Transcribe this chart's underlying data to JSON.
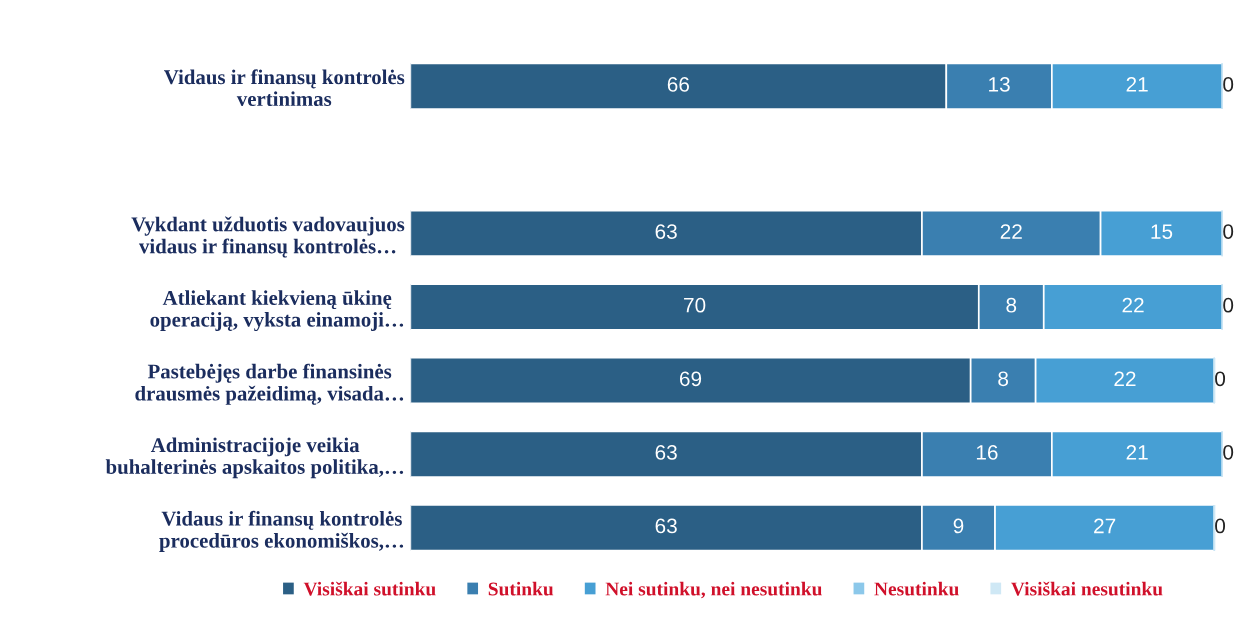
{
  "chart_data": {
    "type": "bar",
    "orientation": "horizontal",
    "stacked": true,
    "categories": [
      "Vidaus ir finansų kontrolės\nvertinimas",
      null,
      "Vykdant užduotis vadovaujuos\nvidaus ir finansų kontrolės…",
      "Atliekant kiekvieną ūkinę\noperaciją, vyksta einamoji…",
      "Pastebėjęs darbe finansinės\ndrausmės pažeidimą, visada…",
      "Administracijoje veikia\nbuhalterinės apskaitos politika,…",
      "Vidaus ir finansų kontrolės\nprocedūros ekonomiškos,…"
    ],
    "xlim": [
      0,
      100
    ],
    "tick_labels": "y",
    "legend": "bottom",
    "series": [
      {
        "name": "Visiškai sutinku",
        "color": "#2b5f85",
        "values": [
          66,
          null,
          63,
          70,
          69,
          63,
          63
        ],
        "value_labels": [
          "66",
          null,
          "63",
          "70",
          "69",
          "63",
          "63"
        ]
      },
      {
        "name": "Sutinku",
        "color": "#3a7fb0",
        "values": [
          13,
          null,
          22,
          8,
          8,
          16,
          9
        ],
        "value_labels": [
          "13",
          null,
          "22",
          "8",
          "8",
          "16",
          "9"
        ]
      },
      {
        "name": "Nei sutinku, nei nesutinku",
        "color": "#479fd4",
        "values": [
          21,
          null,
          15,
          22,
          22,
          21,
          27
        ],
        "value_labels": [
          "21",
          null,
          "15",
          "22",
          "22",
          "21",
          "27"
        ]
      },
      {
        "name": "Nesutinku",
        "color": "#8cc8ea",
        "values": [
          0,
          null,
          0,
          0,
          0,
          0,
          0
        ],
        "value_labels": [
          null,
          null,
          null,
          null,
          null,
          null,
          null
        ]
      },
      {
        "name": "Visiškai nesutinku",
        "color": "#cfe8f5",
        "values": [
          0,
          null,
          0,
          0,
          0,
          0,
          0
        ],
        "value_labels": [
          "0",
          null,
          "0",
          "0",
          "0",
          "0",
          "0"
        ]
      }
    ]
  }
}
